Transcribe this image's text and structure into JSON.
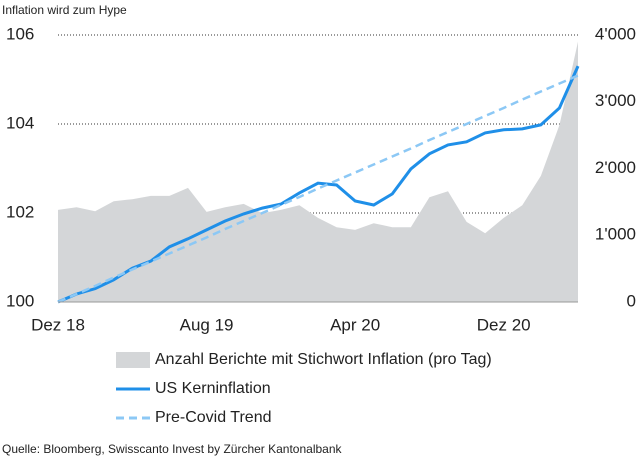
{
  "chart_data": {
    "type": "line",
    "title": "Inflation wird zum Hype",
    "source": "Quelle: Bloomberg, Swisscanto Invest by Zürcher Kantonalbank",
    "categories": [
      "Dez 18",
      null,
      null,
      null,
      null,
      null,
      null,
      null,
      "Aug 19",
      null,
      null,
      null,
      null,
      null,
      null,
      null,
      "Apr 20",
      null,
      null,
      null,
      null,
      null,
      null,
      null,
      "Dez 20",
      null,
      null,
      null,
      null
    ],
    "ylim": [
      100,
      106
    ],
    "yticks": [
      100,
      102,
      104,
      106
    ],
    "y2lim": [
      0,
      4000
    ],
    "y2ticks": [
      0,
      {
        "value": 1000,
        "label": "1'000"
      },
      {
        "value": 2000,
        "label": "2'000"
      },
      {
        "value": 3000,
        "label": "3'000"
      },
      {
        "value": 4000,
        "label": "4'000"
      }
    ],
    "series": [
      {
        "name": "Anzahl Berichte mit Stichwort Inflation (pro Tag)",
        "kind": "area",
        "axis": "y2",
        "color": "#d4d6d8",
        "values": [
          1380,
          1420,
          1360,
          1510,
          1540,
          1590,
          1590,
          1710,
          1350,
          1420,
          1470,
          1330,
          1380,
          1450,
          1260,
          1120,
          1080,
          1180,
          1120,
          1120,
          1570,
          1660,
          1200,
          1030,
          1260,
          1450,
          1890,
          2650,
          3900
        ]
      },
      {
        "name": "US Kerninflation",
        "kind": "line",
        "color": "#1f8fe8",
        "dashed": false,
        "values": [
          100.0,
          100.18,
          100.3,
          100.5,
          100.76,
          100.92,
          101.24,
          101.42,
          101.62,
          101.82,
          101.98,
          102.11,
          102.2,
          102.45,
          102.67,
          102.63,
          102.27,
          102.18,
          102.43,
          102.99,
          103.33,
          103.53,
          103.6,
          103.8,
          103.87,
          103.89,
          103.98,
          104.36,
          105.3
        ]
      },
      {
        "name": "Pre-Covid Trend",
        "kind": "line",
        "color": "#8cc8f5",
        "dashed": true,
        "values": [
          100.0,
          100.18,
          100.36,
          100.55,
          100.73,
          100.91,
          101.09,
          101.27,
          101.45,
          101.64,
          101.82,
          102.0,
          102.18,
          102.36,
          102.55,
          102.73,
          102.91,
          103.09,
          103.27,
          103.45,
          103.64,
          103.82,
          104.0,
          104.18,
          104.36,
          104.55,
          104.73,
          104.91,
          105.09
        ]
      }
    ]
  }
}
